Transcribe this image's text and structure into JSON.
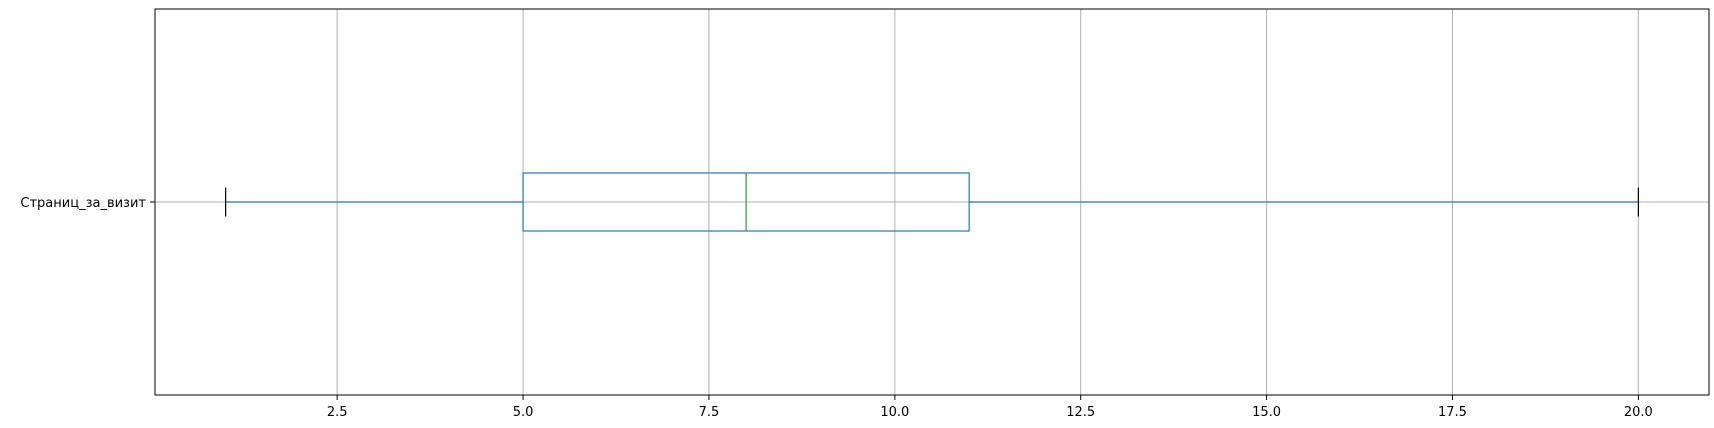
{
  "chart_data": {
    "type": "boxplot",
    "orientation": "horizontal",
    "title": "",
    "xlabel": "",
    "ylabel": "",
    "categories": [
      "Страниц_за_визит"
    ],
    "boxes": [
      {
        "label": "Страниц_за_визит",
        "whisker_low": 1,
        "q1": 5,
        "median": 8,
        "q3": 11,
        "whisker_high": 20
      }
    ],
    "xlim": [
      0.05,
      20.95
    ],
    "x_ticks": [
      2.5,
      5.0,
      7.5,
      10.0,
      12.5,
      15.0,
      17.5,
      20.0
    ],
    "x_tick_labels": [
      "2.5",
      "5.0",
      "7.5",
      "10.0",
      "12.5",
      "15.0",
      "17.5",
      "20.0"
    ],
    "grid": true,
    "colors": {
      "box": "#1f77b4",
      "median": "#2ca02c",
      "caps": "#000000",
      "grid": "#b0b0b0"
    }
  }
}
